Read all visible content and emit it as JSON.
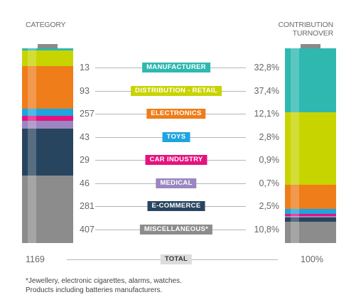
{
  "headers": {
    "left": "CATEGORY",
    "right_line1": "CONTRIBUTION",
    "right_line2": "TURNOVER"
  },
  "chart_data": {
    "type": "table",
    "columns": [
      "count",
      "category",
      "contribution_turnover"
    ],
    "rows": [
      {
        "category": "MANUFACTURER",
        "count": 13,
        "count_text": "13",
        "percent": 32.8,
        "percent_text": "32,8%",
        "color": "#2eb8b0"
      },
      {
        "category": "DISTRIBUTION - RETAIL",
        "count": 93,
        "count_text": "93",
        "percent": 37.4,
        "percent_text": "37,4%",
        "color": "#c8d400"
      },
      {
        "category": "ELECTRONICS",
        "count": 257,
        "count_text": "257",
        "percent": 12.1,
        "percent_text": "12,1%",
        "color": "#ee7d1a"
      },
      {
        "category": "TOYS",
        "count": 43,
        "count_text": "43",
        "percent": 2.8,
        "percent_text": "2,8%",
        "color": "#1ea4df"
      },
      {
        "category": "CAR INDUSTRY",
        "count": 29,
        "count_text": "29",
        "percent": 0.9,
        "percent_text": "0,9%",
        "color": "#e4137e"
      },
      {
        "category": "MEDICAL",
        "count": 46,
        "count_text": "46",
        "percent": 0.7,
        "percent_text": "0,7%",
        "color": "#9b86c1"
      },
      {
        "category": "E-COMMERCE",
        "count": 281,
        "count_text": "281",
        "percent": 2.5,
        "percent_text": "2,5%",
        "color": "#28455f"
      },
      {
        "category": "MISCELLANEOUS*",
        "count": 407,
        "count_text": "407",
        "percent": 10.8,
        "percent_text": "10,8%",
        "color": "#8c8c8c"
      }
    ],
    "total": {
      "label": "TOTAL",
      "count_text": "1169",
      "percent_text": "100%"
    }
  },
  "footnote": {
    "line1": "*Jewellery, electronic cigarettes, alarms, watches.",
    "line2": "Products including batteries manufacturers."
  }
}
